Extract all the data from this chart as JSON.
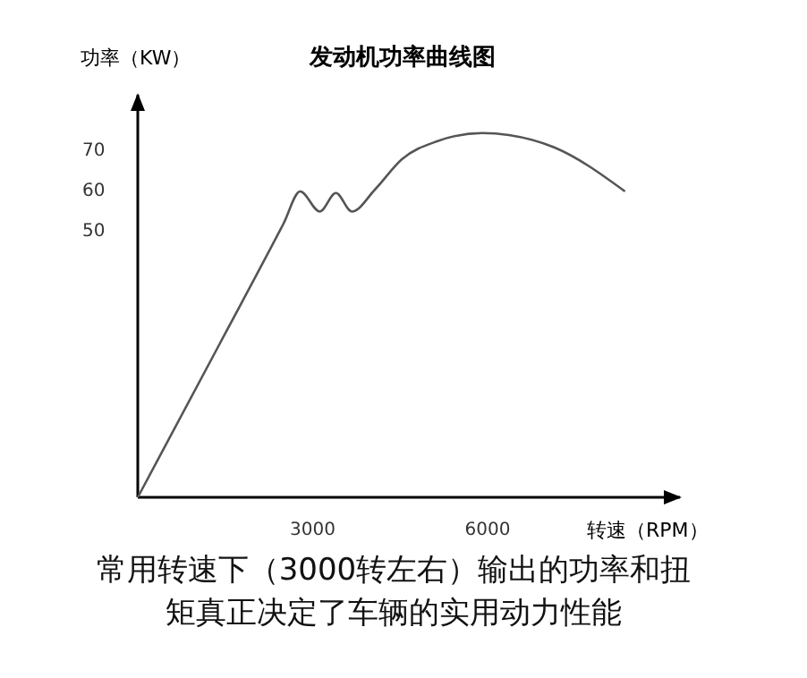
{
  "chart_data": {
    "type": "line",
    "title": "发动机功率曲线图",
    "ylabel": "功率（KW）",
    "xlabel": "转速（RPM）",
    "x": [
      0,
      1400,
      2500,
      2786,
      3122,
      3398,
      3673,
      4071,
      4531,
      5143,
      5908,
      6367,
      7133,
      8357
    ],
    "series": [
      {
        "color": "#555555",
        "values": [
          -16,
          22,
          52,
          60,
          55,
          59.6,
          55,
          60.5,
          68,
          72.5,
          74.5,
          74,
          71,
          60
        ]
      }
    ],
    "xlim": [
      0,
      9300
    ],
    "ylim": [
      -16,
      84
    ],
    "xticks": [
      3000,
      6000
    ],
    "yticks": [
      50,
      60,
      70
    ],
    "marker": "none",
    "line_style": "solid",
    "annotations": [
      "常用转速下（3000转左右）输出的功率和扭",
      "矩真正决定了车辆的实用动力性能"
    ]
  }
}
